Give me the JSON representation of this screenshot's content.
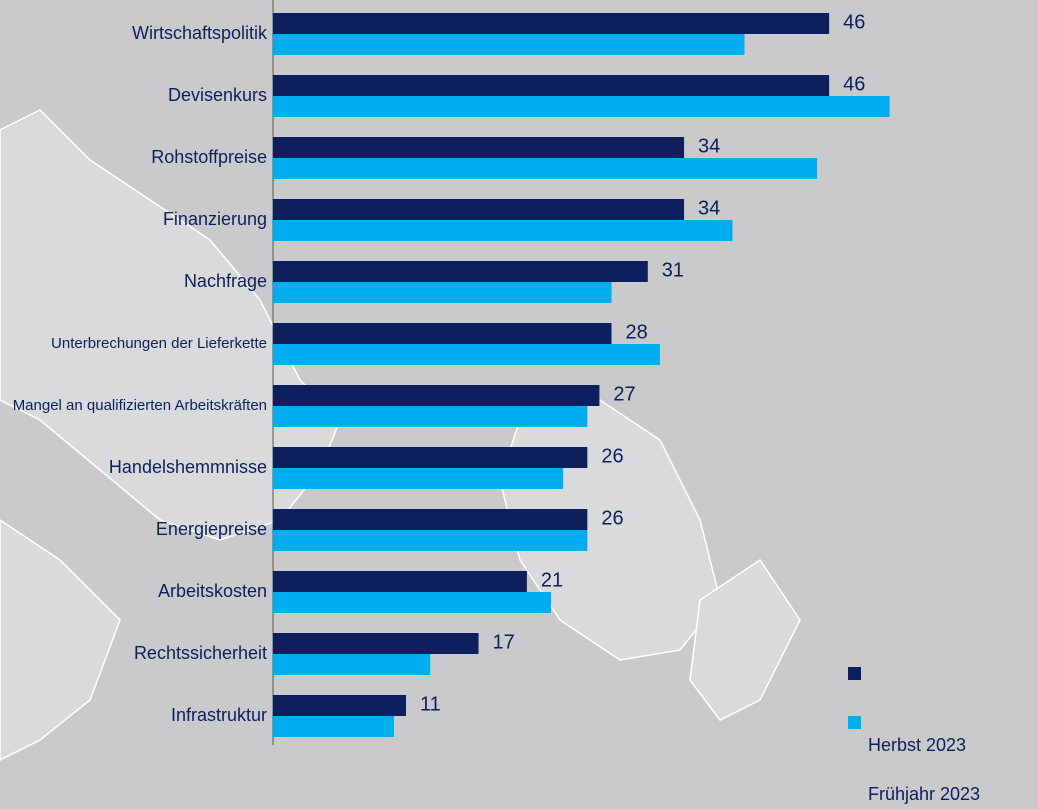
{
  "chart_data": {
    "type": "bar",
    "orientation": "horizontal",
    "categories": [
      "Wirtschaftspolitik",
      "Devisenkurs",
      "Rohstoffpreise",
      "Finanzierung",
      "Nachfrage",
      "Unterbrechungen der Lieferkette",
      "Mangel an qualifizierten Arbeitskräften",
      "Handelshemmnisse",
      "Energiepreise",
      "Arbeitskosten",
      "Rechtssicherheit",
      "Infrastruktur"
    ],
    "series": [
      {
        "name": "Herbst 2023",
        "color": "#0d1f5c",
        "values": [
          46,
          46,
          34,
          34,
          31,
          28,
          27,
          26,
          26,
          21,
          17,
          11
        ]
      },
      {
        "name": "Frühjahr 2023",
        "color": "#00aeef",
        "values": [
          39,
          51,
          45,
          38,
          28,
          32,
          26,
          24,
          26,
          23,
          13,
          10
        ]
      }
    ],
    "xlim": [
      0,
      63
    ]
  }
}
